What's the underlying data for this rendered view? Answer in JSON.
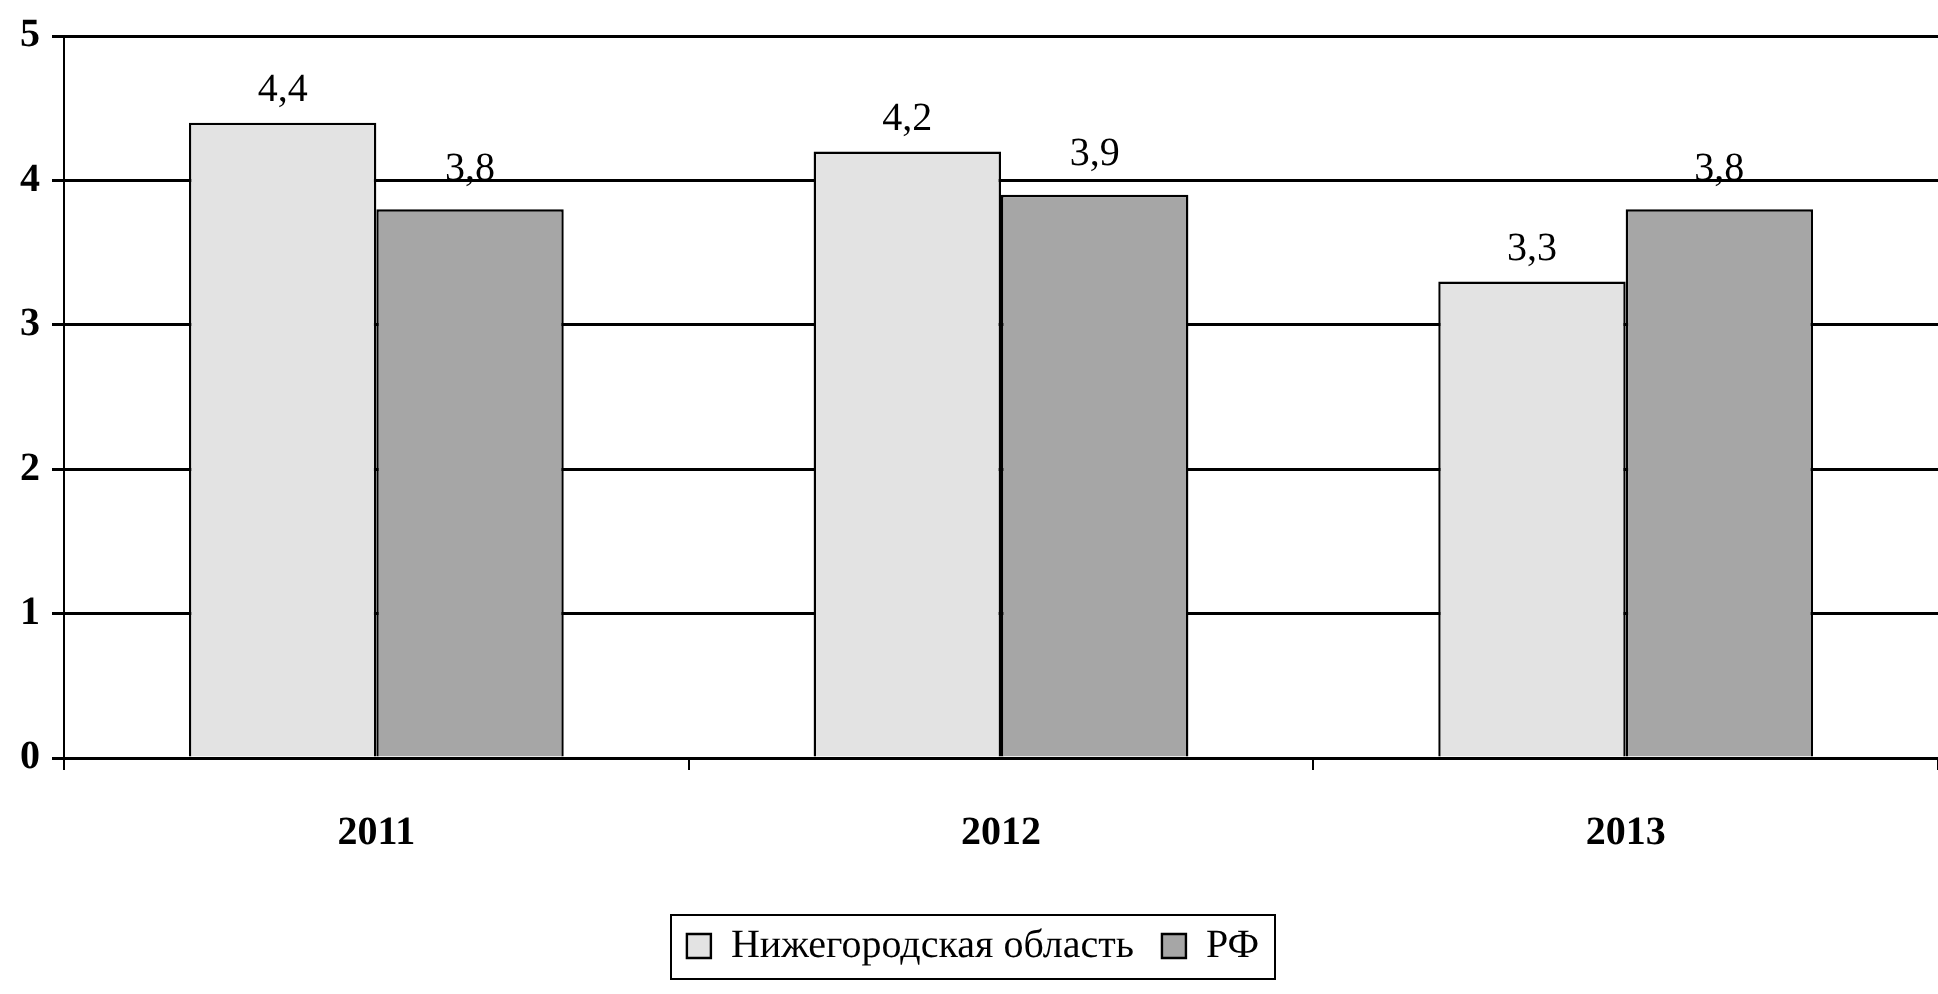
{
  "chart_data": {
    "type": "bar",
    "categories": [
      "2011",
      "2012",
      "2013"
    ],
    "series": [
      {
        "name": "Нижегородская область",
        "color": "#e3e3e3",
        "values": [
          4.4,
          4.2,
          3.3
        ],
        "value_labels": [
          "4,4",
          "4,2",
          "3,3"
        ]
      },
      {
        "name": "РФ",
        "color": "#a6a6a6",
        "values": [
          3.8,
          3.9,
          3.8
        ],
        "value_labels": [
          "3,8",
          "3,9",
          "3,8"
        ]
      }
    ],
    "ylim": [
      0,
      5
    ],
    "yticks": [
      0,
      1,
      2,
      3,
      4,
      5
    ],
    "grid": "y",
    "legend": "bottom"
  }
}
